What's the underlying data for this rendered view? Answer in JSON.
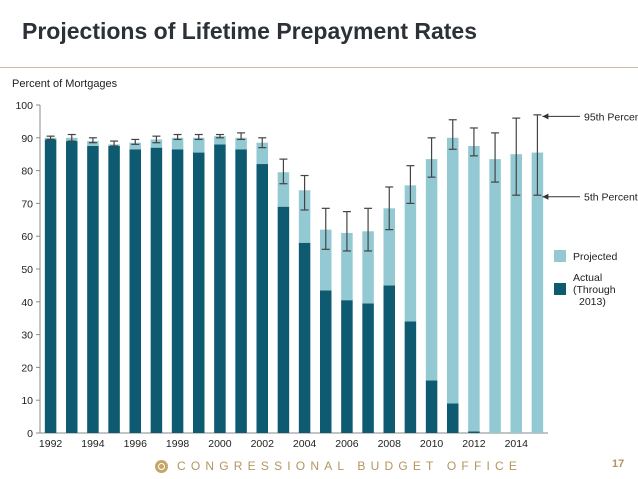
{
  "slide": {
    "title": "Projections of Lifetime Prepayment Rates",
    "footer": "CONGRESSIONAL BUDGET OFFICE",
    "page_number": "17"
  },
  "colors": {
    "actual": "#0e5a70",
    "projected": "#93c9d3",
    "axis": "#888888",
    "error_bar": "#444444",
    "accent": "#b3965c"
  },
  "chart_data": {
    "type": "bar",
    "ylabel": "Percent of Mortgages",
    "ylim": [
      0,
      100
    ],
    "yticks": [
      0,
      10,
      20,
      30,
      40,
      50,
      60,
      70,
      80,
      90,
      100
    ],
    "categories": [
      "1992",
      "1993",
      "1994",
      "1995",
      "1996",
      "1997",
      "1998",
      "1999",
      "2000",
      "2001",
      "2002",
      "2003",
      "2004",
      "2005",
      "2006",
      "2007",
      "2008",
      "2009",
      "2010",
      "2011",
      "2012",
      "2013",
      "2014",
      "2015"
    ],
    "xtick_labels": [
      "1992",
      "1994",
      "1996",
      "1998",
      "2000",
      "2002",
      "2004",
      "2006",
      "2008",
      "2010",
      "2012",
      "2014"
    ],
    "series": [
      {
        "name": "Actual (Through 2013)",
        "values": [
          89.5,
          89,
          87.5,
          87.5,
          86.5,
          87,
          86.5,
          85.5,
          88,
          86.5,
          82,
          69,
          58,
          43.5,
          40.5,
          39.5,
          45,
          34,
          16,
          9,
          0.5,
          0,
          0,
          0
        ]
      },
      {
        "name": "Projected",
        "values": [
          0.5,
          1,
          1.5,
          0.5,
          2,
          2.5,
          3.5,
          4.5,
          2.5,
          3.5,
          6.5,
          10.5,
          16,
          18.5,
          20.5,
          22,
          23.5,
          41.5,
          67.5,
          81,
          87,
          83.5,
          85,
          85.5
        ]
      }
    ],
    "percentile_5": [
      89.5,
      89,
      88.5,
      87.5,
      88,
      88.5,
      89.5,
      89.5,
      90,
      89.5,
      87,
      76,
      68,
      56,
      55.5,
      55.5,
      62,
      70,
      78,
      86.5,
      84.5,
      76.5,
      72.5,
      72.5
    ],
    "percentile_95": [
      90.5,
      91,
      90,
      89,
      89.5,
      90.5,
      91,
      91,
      91,
      91.5,
      90,
      83.5,
      78.5,
      68.5,
      67.5,
      68.5,
      75,
      81.5,
      90,
      95.5,
      93,
      91.5,
      96,
      97
    ],
    "annotations": {
      "p95": "95th Percentile",
      "p5": "5th Percentile"
    },
    "legend": [
      {
        "label": "Projected",
        "color": "#93c9d3"
      },
      {
        "label": "Actual\n(Through\n2013)",
        "color": "#0e5a70"
      }
    ],
    "legend_position": "right"
  }
}
